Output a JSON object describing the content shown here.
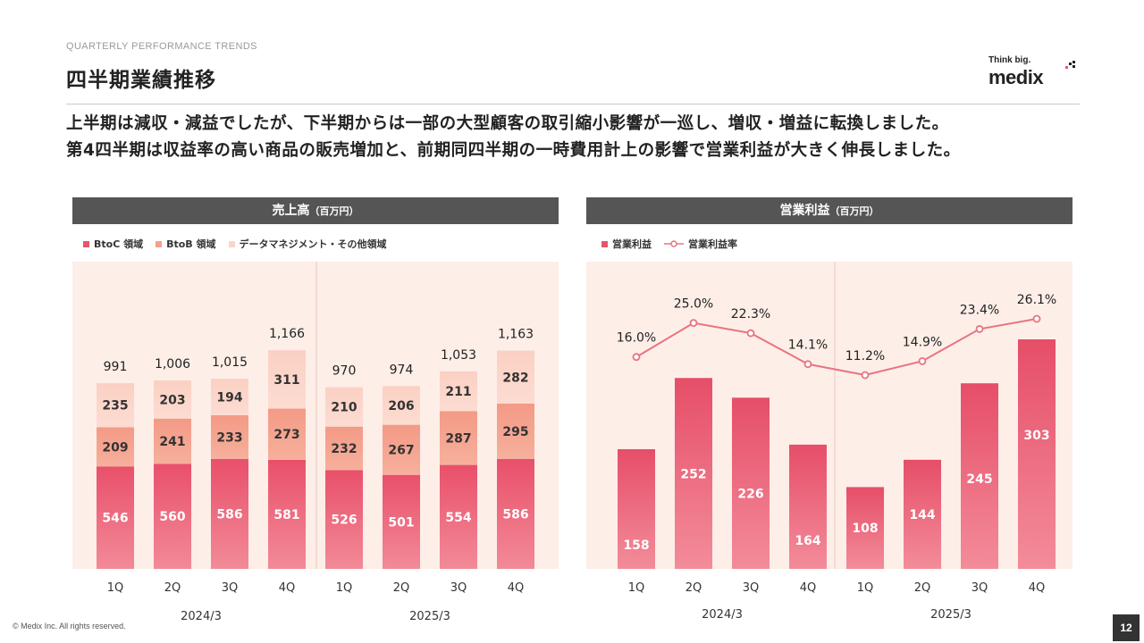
{
  "header": {
    "eyebrow": "QUARTERLY PERFORMANCE TRENDS",
    "title": "四半期業績推移",
    "logo_tagline": "Think big.",
    "logo_word": "medix"
  },
  "lead": {
    "line1": "上半期は減収・減益でしたが、下半期からは一部の大型顧客の取引縮小影響が一巡し、増収・増益に転換しました。",
    "line2": "第4四半期は収益率の高い商品の販売増加と、前期同四半期の一時費用計上の影響で営業利益が大きく伸長しました。"
  },
  "colors": {
    "btoc": "#e8556d",
    "btob": "#f3a18d",
    "data": "#fad4c9",
    "line": "#e8737f",
    "plot_bg": "#fdeee8",
    "header_bg": "#555555"
  },
  "chart_data": [
    {
      "type": "bar",
      "stacked": true,
      "title": "売上高",
      "unit": "（百万円）",
      "categories": [
        "1Q",
        "2Q",
        "3Q",
        "4Q",
        "1Q",
        "2Q",
        "3Q",
        "4Q"
      ],
      "groups": [
        {
          "label": "2024/3",
          "count": 4
        },
        {
          "label": "2025/3",
          "count": 4
        }
      ],
      "series": [
        {
          "name": "BtoC 領域",
          "values": [
            546,
            560,
            586,
            581,
            526,
            501,
            554,
            586
          ]
        },
        {
          "name": "BtoB 領域",
          "values": [
            209,
            241,
            233,
            273,
            232,
            267,
            287,
            295
          ]
        },
        {
          "name": "データマネジメント・その他領域",
          "values": [
            235,
            203,
            194,
            311,
            210,
            206,
            211,
            282
          ]
        }
      ],
      "totals": [
        "991",
        "1,006",
        "1,015",
        "1,166",
        "970",
        "974",
        "1,053",
        "1,163"
      ],
      "legend": "top-left"
    },
    {
      "type": "bar+line",
      "title": "営業利益",
      "unit": "（百万円）",
      "categories": [
        "1Q",
        "2Q",
        "3Q",
        "4Q",
        "1Q",
        "2Q",
        "3Q",
        "4Q"
      ],
      "groups": [
        {
          "label": "2024/3",
          "count": 4
        },
        {
          "label": "2025/3",
          "count": 4
        }
      ],
      "series": [
        {
          "name": "営業利益",
          "type": "bar",
          "values": [
            158,
            252,
            226,
            164,
            108,
            144,
            245,
            303
          ]
        },
        {
          "name": "営業利益率",
          "type": "line",
          "values": [
            16.0,
            25.0,
            22.3,
            14.1,
            11.2,
            14.9,
            23.4,
            26.1
          ],
          "labels": [
            "16.0%",
            "25.0%",
            "22.3%",
            "14.1%",
            "11.2%",
            "14.9%",
            "23.4%",
            "26.1%"
          ]
        }
      ],
      "legend": "top-left"
    }
  ],
  "footer": {
    "copyright": "© Medix Inc. All rights reserved.",
    "page": "12"
  }
}
